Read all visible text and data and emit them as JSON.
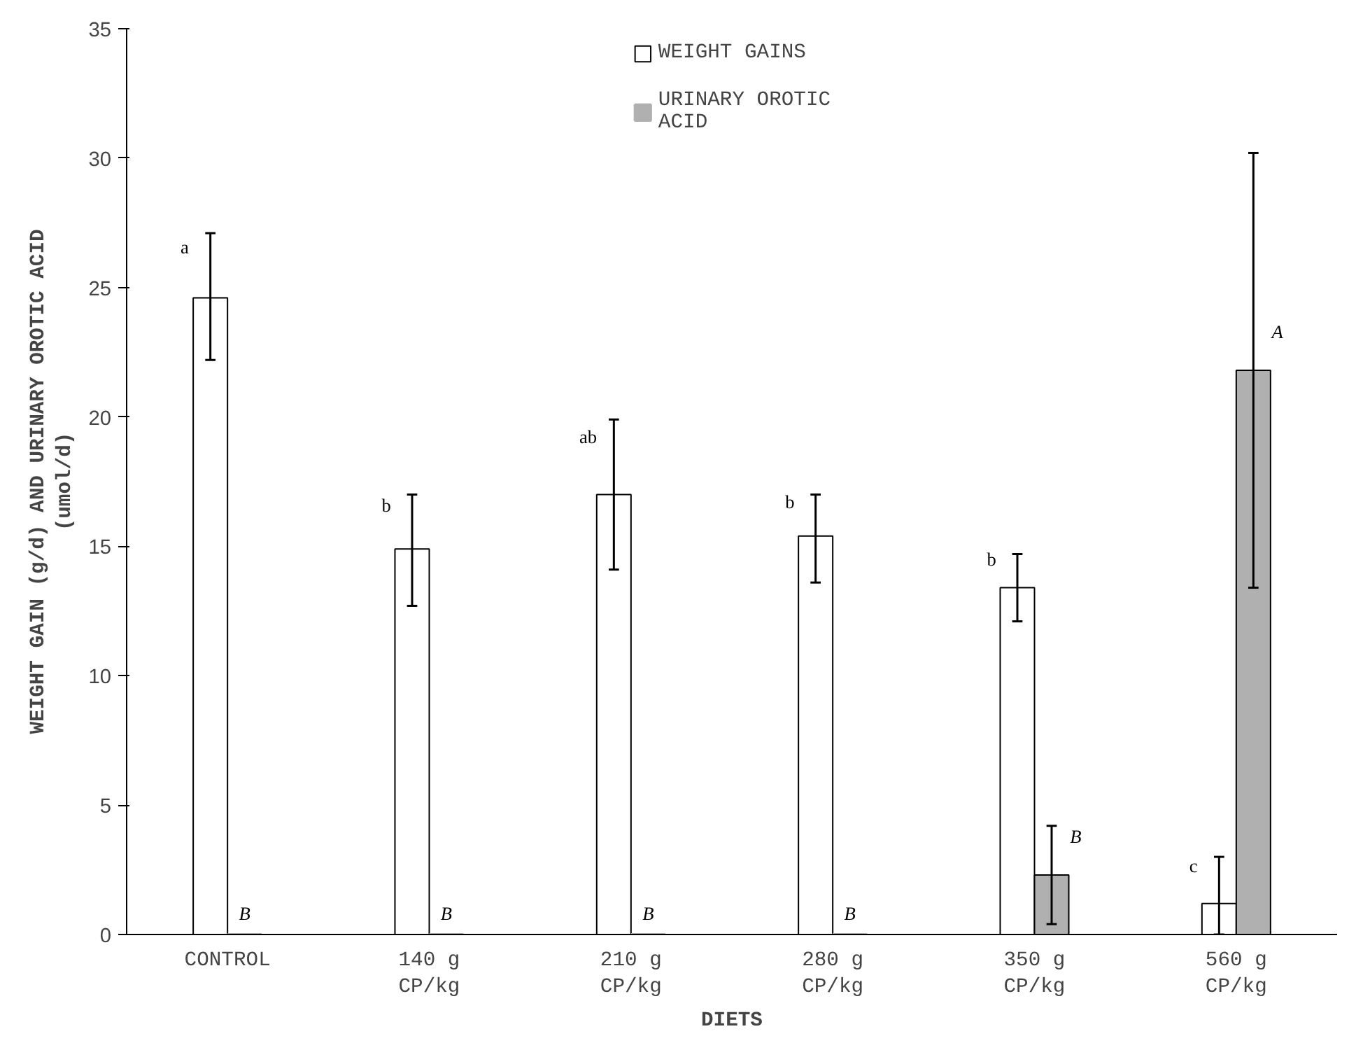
{
  "chart_data": {
    "type": "bar",
    "xlabel": "DIETS",
    "ylabel": "WEIGHT GAIN (g/d) AND URINARY OROTIC ACID\n(umol/d)",
    "categories": [
      "CONTROL",
      "140 g\nCP/kg",
      "210 g\nCP/kg",
      "280 g\nCP/kg",
      "350 g\nCP/kg",
      "560 g\nCP/kg"
    ],
    "series": [
      {
        "name": "WEIGHT GAINS",
        "color": "#ffffff",
        "values": [
          24.6,
          14.9,
          17.0,
          15.4,
          13.4,
          1.2
        ],
        "errors": [
          [
            22.2,
            27.1
          ],
          [
            12.7,
            17.0
          ],
          [
            14.1,
            19.9
          ],
          [
            13.6,
            17.0
          ],
          [
            12.1,
            14.7
          ],
          [
            0,
            3.0
          ]
        ],
        "value_labels": [
          "a",
          "b",
          "ab",
          "b",
          "b",
          "c"
        ]
      },
      {
        "name": "URINARY OROTIC\nACID",
        "color": "#b0b0b0",
        "values": [
          0,
          0,
          0,
          0,
          2.3,
          21.8
        ],
        "errors": [
          null,
          null,
          null,
          null,
          [
            0.4,
            4.2
          ],
          [
            13.4,
            30.2
          ]
        ],
        "value_labels": [
          "B",
          "B",
          "B",
          "B",
          "B",
          "A"
        ]
      }
    ],
    "ylim": [
      0,
      35
    ],
    "yticks": [
      0,
      5,
      10,
      15,
      20,
      25,
      30,
      35
    ],
    "legend": "top",
    "grid": false
  }
}
